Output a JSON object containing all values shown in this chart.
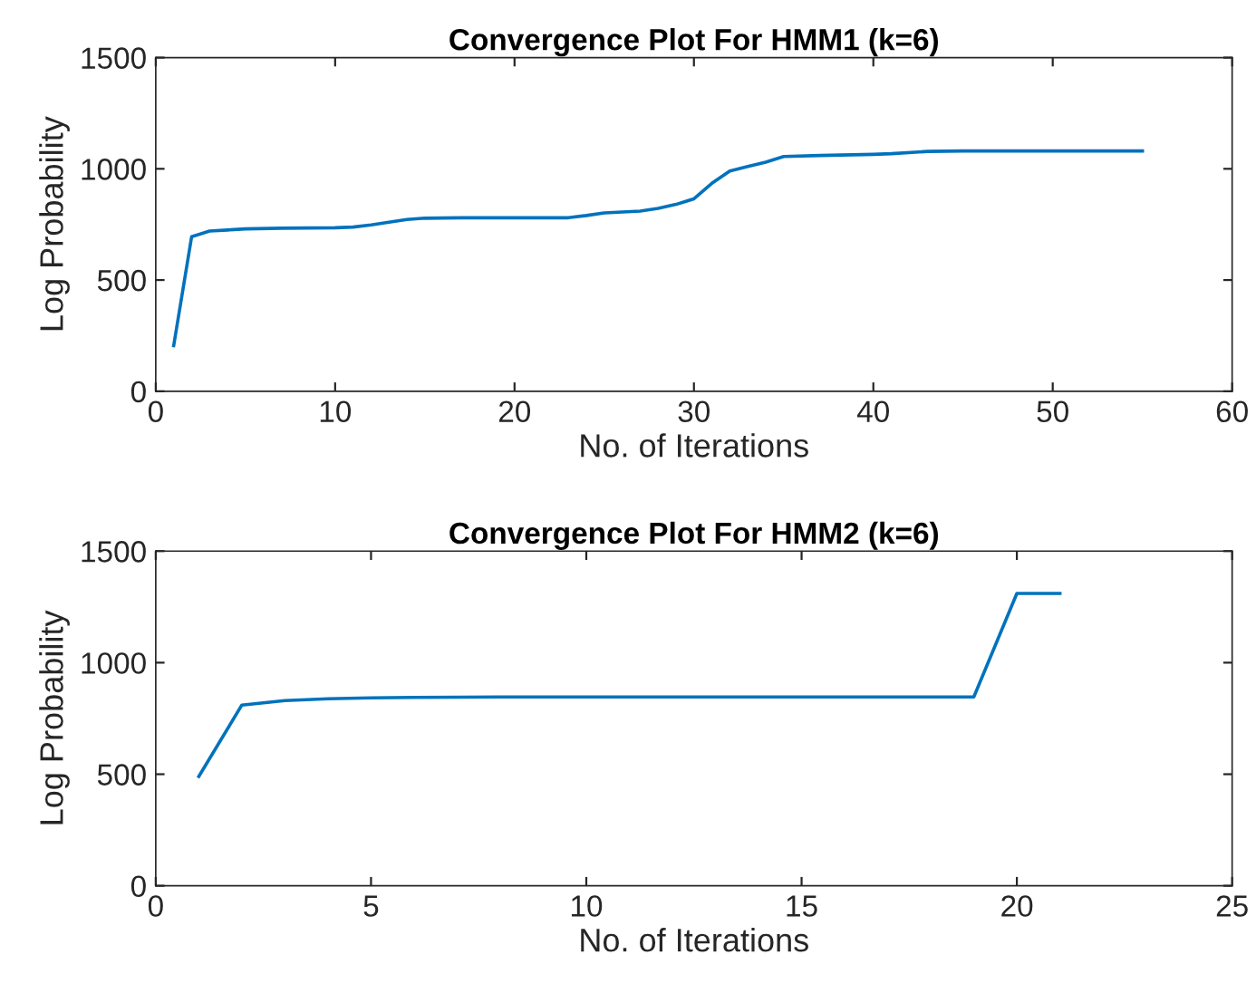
{
  "chart_data": [
    {
      "type": "line",
      "title": "Convergence Plot For HMM1 (k=6)",
      "xlabel": "No. of Iterations",
      "ylabel": "Log Probability",
      "xlim": [
        0,
        60
      ],
      "xticks": [
        0,
        10,
        20,
        30,
        40,
        50,
        60
      ],
      "ylim": [
        0,
        1500
      ],
      "yticks": [
        0,
        500,
        1000,
        1500
      ],
      "grid": false,
      "legend": false,
      "series": [
        {
          "color": "#0072bd",
          "x": [
            1,
            2,
            3,
            4,
            5,
            7,
            10,
            11,
            12,
            13,
            14,
            15,
            17,
            20,
            23,
            24,
            25,
            27,
            28,
            29,
            30,
            31,
            32,
            33,
            34,
            35,
            37,
            40,
            41,
            43,
            45,
            50,
            55
          ],
          "values": [
            205,
            695,
            720,
            725,
            730,
            733,
            735,
            738,
            748,
            760,
            772,
            778,
            780,
            780,
            780,
            790,
            802,
            810,
            822,
            840,
            865,
            935,
            990,
            1010,
            1030,
            1055,
            1060,
            1065,
            1068,
            1078,
            1080,
            1080,
            1080
          ]
        }
      ]
    },
    {
      "type": "line",
      "title": "Convergence Plot For HMM2 (k=6)",
      "xlabel": "No. of Iterations",
      "ylabel": "Log Probability",
      "xlim": [
        0,
        25
      ],
      "xticks": [
        0,
        5,
        10,
        15,
        20,
        25
      ],
      "ylim": [
        0,
        1500
      ],
      "yticks": [
        0,
        500,
        1000,
        1500
      ],
      "grid": false,
      "legend": false,
      "series": [
        {
          "color": "#0072bd",
          "x": [
            1,
            2,
            3,
            4,
            5,
            6,
            8,
            10,
            12,
            15,
            17,
            19,
            20,
            21
          ],
          "values": [
            490,
            810,
            830,
            838,
            842,
            844,
            846,
            846,
            846,
            846,
            846,
            846,
            1310,
            1310
          ]
        }
      ]
    }
  ]
}
